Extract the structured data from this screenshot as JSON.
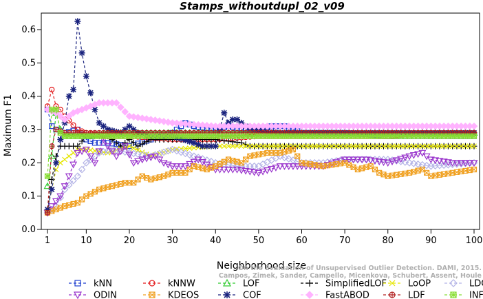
{
  "chart_data": {
    "type": "line",
    "title": "Stamps_withoutdupl_02_v09",
    "xlabel": "Neighborhood size",
    "ylabel": "Maximum F1",
    "xlim": [
      1,
      100
    ],
    "ylim": [
      0,
      0.65
    ],
    "xticks": [
      1,
      10,
      20,
      30,
      40,
      50,
      60,
      70,
      80,
      90,
      100
    ],
    "yticks": [
      0.0,
      0.1,
      0.2,
      0.3,
      0.4,
      0.5,
      0.6
    ],
    "ytick_labels": [
      "0.0",
      "0.1",
      "0.2",
      "0.3",
      "0.4",
      "0.5",
      "0.6"
    ],
    "legend_position": "bottom",
    "series": [
      {
        "name": "kNN",
        "color": "#1f3fcf",
        "marker": "square",
        "points": [
          [
            1,
            0.36
          ],
          [
            2,
            0.31
          ],
          [
            3,
            0.3
          ],
          [
            5,
            0.29
          ],
          [
            8,
            0.3
          ],
          [
            10,
            0.27
          ],
          [
            12,
            0.26
          ],
          [
            15,
            0.26
          ],
          [
            20,
            0.25
          ],
          [
            25,
            0.27
          ],
          [
            30,
            0.29
          ],
          [
            33,
            0.32
          ],
          [
            35,
            0.31
          ],
          [
            40,
            0.3
          ],
          [
            43,
            0.31
          ],
          [
            46,
            0.3
          ],
          [
            50,
            0.3
          ],
          [
            53,
            0.31
          ],
          [
            56,
            0.31
          ],
          [
            60,
            0.29
          ],
          [
            70,
            0.29
          ],
          [
            80,
            0.28
          ],
          [
            90,
            0.28
          ],
          [
            100,
            0.28
          ]
        ]
      },
      {
        "name": "kNNW",
        "color": "#e31a1c",
        "marker": "circle",
        "points": [
          [
            1,
            0.37
          ],
          [
            2,
            0.42
          ],
          [
            3,
            0.37
          ],
          [
            4,
            0.36
          ],
          [
            5,
            0.34
          ],
          [
            8,
            0.3
          ],
          [
            10,
            0.29
          ],
          [
            15,
            0.28
          ],
          [
            20,
            0.28
          ],
          [
            30,
            0.27
          ],
          [
            40,
            0.27
          ],
          [
            50,
            0.28
          ],
          [
            60,
            0.28
          ],
          [
            70,
            0.28
          ],
          [
            80,
            0.28
          ],
          [
            88,
            0.29
          ],
          [
            95,
            0.29
          ],
          [
            100,
            0.29
          ]
        ]
      },
      {
        "name": "LOF",
        "color": "#33cc33",
        "marker": "triangle-up",
        "points": [
          [
            1,
            0.13
          ],
          [
            2,
            0.22
          ],
          [
            3,
            0.35
          ],
          [
            4,
            0.3
          ],
          [
            5,
            0.28
          ],
          [
            8,
            0.28
          ],
          [
            10,
            0.28
          ],
          [
            15,
            0.29
          ],
          [
            20,
            0.29
          ],
          [
            30,
            0.29
          ],
          [
            40,
            0.29
          ],
          [
            50,
            0.29
          ],
          [
            60,
            0.29
          ],
          [
            70,
            0.29
          ],
          [
            80,
            0.29
          ],
          [
            90,
            0.29
          ],
          [
            100,
            0.29
          ]
        ]
      },
      {
        "name": "SimplifiedLOF",
        "color": "#000000",
        "marker": "plus",
        "points": [
          [
            1,
            0.05
          ],
          [
            2,
            0.15
          ],
          [
            3,
            0.22
          ],
          [
            4,
            0.25
          ],
          [
            5,
            0.25
          ],
          [
            8,
            0.25
          ],
          [
            10,
            0.28
          ],
          [
            15,
            0.28
          ],
          [
            18,
            0.25
          ],
          [
            20,
            0.27
          ],
          [
            22,
            0.25
          ],
          [
            25,
            0.27
          ],
          [
            30,
            0.27
          ],
          [
            40,
            0.27
          ],
          [
            46,
            0.26
          ],
          [
            48,
            0.25
          ],
          [
            55,
            0.25
          ],
          [
            60,
            0.25
          ],
          [
            70,
            0.25
          ],
          [
            80,
            0.25
          ],
          [
            90,
            0.25
          ],
          [
            100,
            0.25
          ]
        ]
      },
      {
        "name": "LoOP",
        "color": "#e6e600",
        "marker": "cross",
        "points": [
          [
            1,
            0.06
          ],
          [
            2,
            0.12
          ],
          [
            3,
            0.18
          ],
          [
            4,
            0.2
          ],
          [
            6,
            0.22
          ],
          [
            8,
            0.24
          ],
          [
            10,
            0.24
          ],
          [
            15,
            0.23
          ],
          [
            20,
            0.25
          ],
          [
            25,
            0.22
          ],
          [
            30,
            0.24
          ],
          [
            40,
            0.25
          ],
          [
            50,
            0.25
          ],
          [
            60,
            0.25
          ],
          [
            70,
            0.25
          ],
          [
            80,
            0.25
          ],
          [
            90,
            0.25
          ],
          [
            100,
            0.25
          ]
        ]
      },
      {
        "name": "LDOF",
        "color": "#b3b3e6",
        "marker": "diamond",
        "points": [
          [
            1,
            0.05
          ],
          [
            3,
            0.07
          ],
          [
            5,
            0.12
          ],
          [
            8,
            0.16
          ],
          [
            10,
            0.2
          ],
          [
            13,
            0.23
          ],
          [
            16,
            0.24
          ],
          [
            20,
            0.23
          ],
          [
            25,
            0.22
          ],
          [
            30,
            0.24
          ],
          [
            35,
            0.22
          ],
          [
            40,
            0.2
          ],
          [
            45,
            0.19
          ],
          [
            50,
            0.19
          ],
          [
            55,
            0.22
          ],
          [
            60,
            0.2
          ],
          [
            65,
            0.2
          ],
          [
            70,
            0.21
          ],
          [
            80,
            0.21
          ],
          [
            90,
            0.19
          ],
          [
            100,
            0.2
          ]
        ]
      },
      {
        "name": "ODIN",
        "color": "#9933cc",
        "marker": "triangle-down",
        "points": [
          [
            1,
            0.05
          ],
          [
            2,
            0.07
          ],
          [
            4,
            0.1
          ],
          [
            6,
            0.16
          ],
          [
            8,
            0.23
          ],
          [
            10,
            0.24
          ],
          [
            12,
            0.2
          ],
          [
            14,
            0.27
          ],
          [
            15,
            0.25
          ],
          [
            17,
            0.22
          ],
          [
            19,
            0.25
          ],
          [
            21,
            0.2
          ],
          [
            23,
            0.21
          ],
          [
            26,
            0.22
          ],
          [
            28,
            0.2
          ],
          [
            30,
            0.19
          ],
          [
            33,
            0.19
          ],
          [
            36,
            0.21
          ],
          [
            40,
            0.18
          ],
          [
            45,
            0.18
          ],
          [
            50,
            0.17
          ],
          [
            55,
            0.19
          ],
          [
            60,
            0.19
          ],
          [
            65,
            0.19
          ],
          [
            70,
            0.21
          ],
          [
            75,
            0.21
          ],
          [
            80,
            0.2
          ],
          [
            85,
            0.22
          ],
          [
            88,
            0.23
          ],
          [
            90,
            0.21
          ],
          [
            95,
            0.2
          ],
          [
            100,
            0.2
          ]
        ]
      },
      {
        "name": "KDEOS",
        "color": "#f0a020",
        "marker": "square-x",
        "points": [
          [
            1,
            0.05
          ],
          [
            3,
            0.06
          ],
          [
            5,
            0.07
          ],
          [
            8,
            0.08
          ],
          [
            10,
            0.1
          ],
          [
            13,
            0.12
          ],
          [
            16,
            0.13
          ],
          [
            19,
            0.14
          ],
          [
            21,
            0.14
          ],
          [
            23,
            0.16
          ],
          [
            25,
            0.15
          ],
          [
            28,
            0.16
          ],
          [
            30,
            0.17
          ],
          [
            33,
            0.17
          ],
          [
            35,
            0.19
          ],
          [
            38,
            0.18
          ],
          [
            40,
            0.19
          ],
          [
            43,
            0.21
          ],
          [
            46,
            0.2
          ],
          [
            48,
            0.22
          ],
          [
            52,
            0.23
          ],
          [
            55,
            0.23
          ],
          [
            58,
            0.24
          ],
          [
            60,
            0.2
          ],
          [
            65,
            0.19
          ],
          [
            70,
            0.2
          ],
          [
            73,
            0.18
          ],
          [
            76,
            0.19
          ],
          [
            78,
            0.17
          ],
          [
            80,
            0.16
          ],
          [
            85,
            0.17
          ],
          [
            88,
            0.18
          ],
          [
            90,
            0.16
          ],
          [
            95,
            0.17
          ],
          [
            100,
            0.18
          ]
        ]
      },
      {
        "name": "COF",
        "color": "#1a237e",
        "marker": "star",
        "points": [
          [
            1,
            0.06
          ],
          [
            2,
            0.12
          ],
          [
            3,
            0.2
          ],
          [
            4,
            0.27
          ],
          [
            5,
            0.32
          ],
          [
            6,
            0.4
          ],
          [
            7,
            0.42
          ],
          [
            8,
            0.625
          ],
          [
            9,
            0.53
          ],
          [
            10,
            0.46
          ],
          [
            11,
            0.41
          ],
          [
            12,
            0.36
          ],
          [
            13,
            0.32
          ],
          [
            14,
            0.31
          ],
          [
            15,
            0.3
          ],
          [
            18,
            0.29
          ],
          [
            20,
            0.31
          ],
          [
            22,
            0.29
          ],
          [
            25,
            0.28
          ],
          [
            30,
            0.28
          ],
          [
            35,
            0.26
          ],
          [
            37,
            0.25
          ],
          [
            40,
            0.25
          ],
          [
            42,
            0.35
          ],
          [
            43,
            0.32
          ],
          [
            44,
            0.33
          ],
          [
            45,
            0.33
          ],
          [
            48,
            0.3
          ],
          [
            55,
            0.29
          ],
          [
            60,
            0.29
          ],
          [
            70,
            0.29
          ],
          [
            80,
            0.29
          ],
          [
            90,
            0.29
          ],
          [
            100,
            0.29
          ]
        ]
      },
      {
        "name": "FastABOD",
        "color": "#ffb3ff",
        "marker": "diamond-filled",
        "points": [
          [
            1,
            0.36
          ],
          [
            3,
            0.35
          ],
          [
            5,
            0.33
          ],
          [
            7,
            0.35
          ],
          [
            9,
            0.36
          ],
          [
            11,
            0.37
          ],
          [
            13,
            0.38
          ],
          [
            15,
            0.38
          ],
          [
            17,
            0.38
          ],
          [
            20,
            0.34
          ],
          [
            25,
            0.33
          ],
          [
            30,
            0.32
          ],
          [
            40,
            0.31
          ],
          [
            50,
            0.31
          ],
          [
            60,
            0.31
          ],
          [
            70,
            0.31
          ],
          [
            80,
            0.31
          ],
          [
            90,
            0.31
          ],
          [
            100,
            0.31
          ]
        ]
      },
      {
        "name": "LDF",
        "color": "#b22222",
        "marker": "circle-plus",
        "points": [
          [
            1,
            0.05
          ],
          [
            2,
            0.25
          ],
          [
            3,
            0.3
          ],
          [
            5,
            0.29
          ],
          [
            8,
            0.29
          ],
          [
            10,
            0.29
          ],
          [
            20,
            0.29
          ],
          [
            30,
            0.29
          ],
          [
            40,
            0.29
          ],
          [
            50,
            0.29
          ],
          [
            60,
            0.29
          ],
          [
            70,
            0.29
          ],
          [
            80,
            0.29
          ],
          [
            90,
            0.29
          ],
          [
            100,
            0.29
          ]
        ]
      },
      {
        "name": "INFLO",
        "color": "#88dd33",
        "marker": "square-plus",
        "points": [
          [
            1,
            0.16
          ],
          [
            2,
            0.36
          ],
          [
            3,
            0.36
          ],
          [
            4,
            0.29
          ],
          [
            5,
            0.28
          ],
          [
            8,
            0.28
          ],
          [
            10,
            0.28
          ],
          [
            15,
            0.28
          ],
          [
            20,
            0.28
          ],
          [
            30,
            0.28
          ],
          [
            40,
            0.28
          ],
          [
            50,
            0.28
          ],
          [
            60,
            0.28
          ],
          [
            70,
            0.28
          ],
          [
            80,
            0.28
          ],
          [
            90,
            0.28
          ],
          [
            100,
            0.28
          ]
        ]
      }
    ],
    "watermark": [
      "Campos, Zimek, Sander, Campello, Micenkova, Schubert, Assent, Houle",
      "On the Evaluation of Unsupervised Outlier Detection. DAMI, 2015."
    ]
  }
}
